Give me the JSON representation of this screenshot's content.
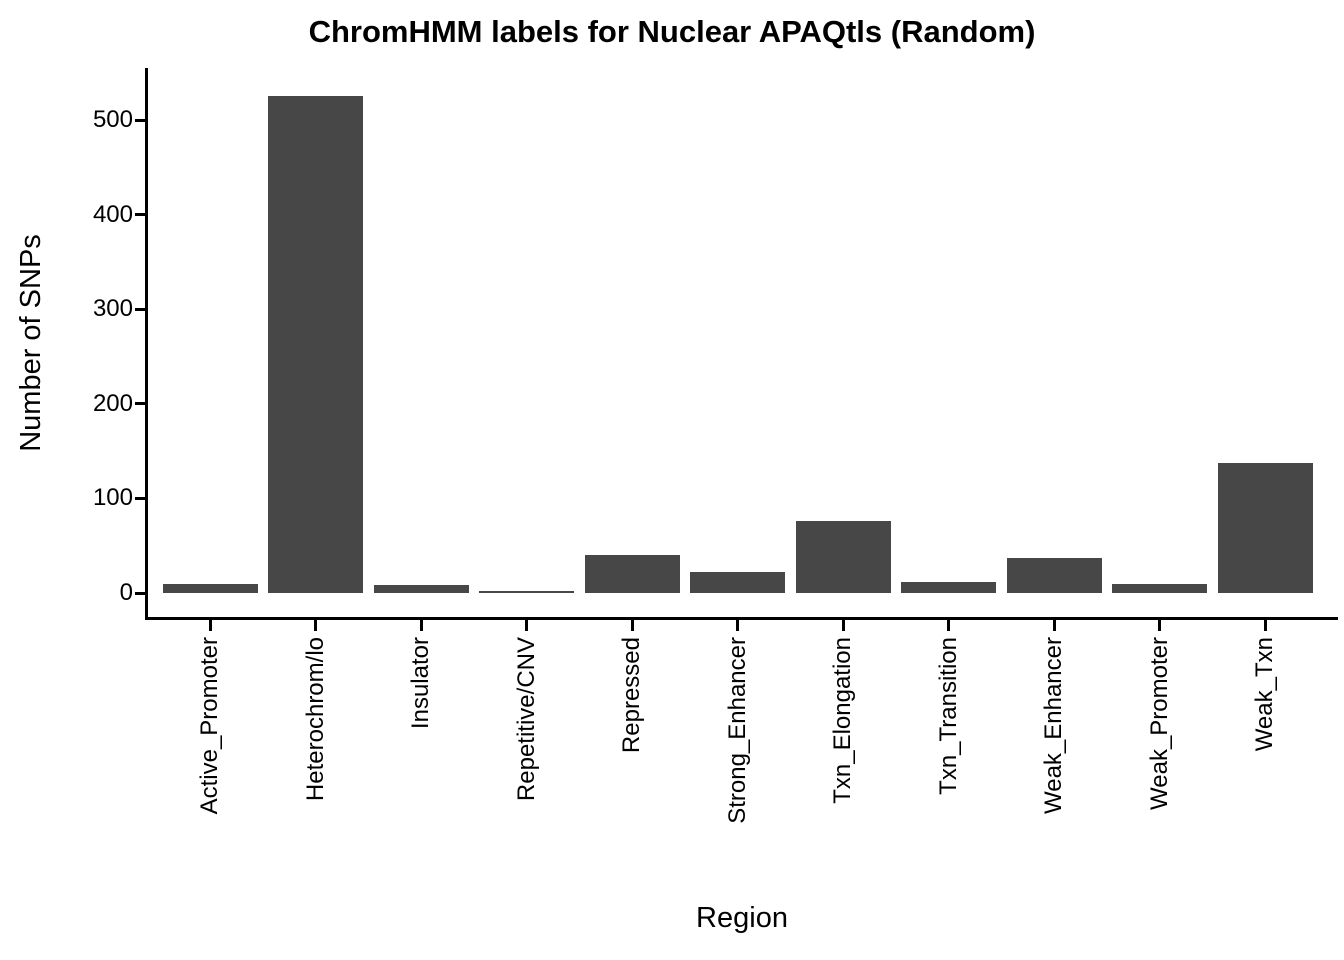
{
  "chart_data": {
    "type": "bar",
    "title": "ChromHMM labels for Nuclear APAQtls (Random)",
    "xlabel": "Region",
    "ylabel": "Number of SNPs",
    "categories": [
      "Active_Promoter",
      "Heterochrom/lo",
      "Insulator",
      "Repetitive/CNV",
      "Repressed",
      "Strong_Enhancer",
      "Txn_Elongation",
      "Txn_Transition",
      "Weak_Enhancer",
      "Weak_Promoter",
      "Weak_Txn"
    ],
    "values": [
      10,
      525,
      8,
      2,
      40,
      22,
      76,
      12,
      37,
      9,
      137
    ],
    "yticks": [
      0,
      100,
      200,
      300,
      400,
      500
    ],
    "ylim": [
      0,
      550
    ],
    "bar_color": "#474747",
    "axis_color": "#000000",
    "background_color": "#ffffff",
    "grid": false,
    "legend": "none"
  }
}
